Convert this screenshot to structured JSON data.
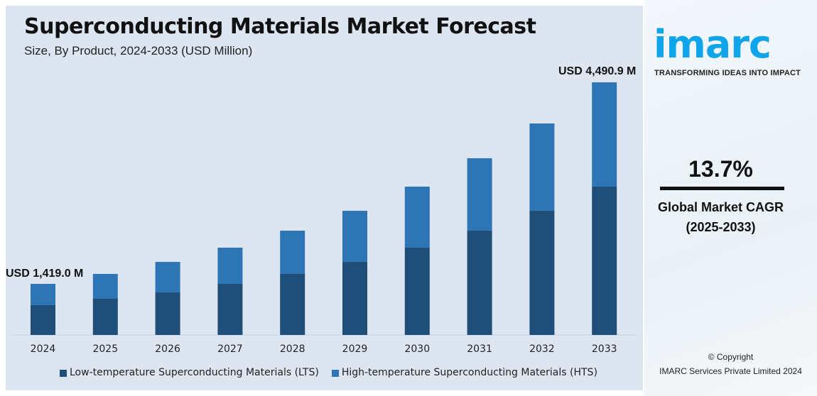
{
  "colors": {
    "lts": "#1f4e79",
    "hts": "#2e75b6",
    "panel": "#dde5f1",
    "brand": "#10a5ea"
  },
  "chart_data": {
    "type": "bar",
    "stacked": true,
    "title": "Superconducting Materials Market Forecast",
    "subtitle": "Size, By Product, 2024-2033 (USD Million)",
    "categories": [
      "2024",
      "2025",
      "2026",
      "2027",
      "2028",
      "2029",
      "2030",
      "2031",
      "2032",
      "2033"
    ],
    "series": [
      {
        "name": "Low-temperature Superconducting Materials (LTS)",
        "values": [
          1095,
          1192,
          1289,
          1419,
          1571,
          1754,
          1971,
          2230,
          2533,
          2901
        ]
      },
      {
        "name": "High-temperature Superconducting Materials (HTS)",
        "values": [
          324,
          379,
          465,
          552,
          659,
          779,
          930,
          1104,
          1331,
          1590
        ]
      }
    ],
    "totals": [
      1419.0,
      1571,
      1754,
      1971,
      2230,
      2533,
      2901,
      3334,
      3864,
      4490.9
    ],
    "annotations": {
      "first": "USD 1,419.0 M",
      "last": "USD 4,490.9 M"
    },
    "legend_position": "bottom",
    "grid": false
  },
  "brand": {
    "logo": "imarc",
    "tagline": "TRANSFORMING IDEAS INTO IMPACT"
  },
  "cagr": {
    "value": "13.7%",
    "label1": "Global Market CAGR",
    "label2": "(2025-2033)"
  },
  "copyright": {
    "line1": "© Copyright",
    "line2": "IMARC Services Private Limited 2024"
  }
}
